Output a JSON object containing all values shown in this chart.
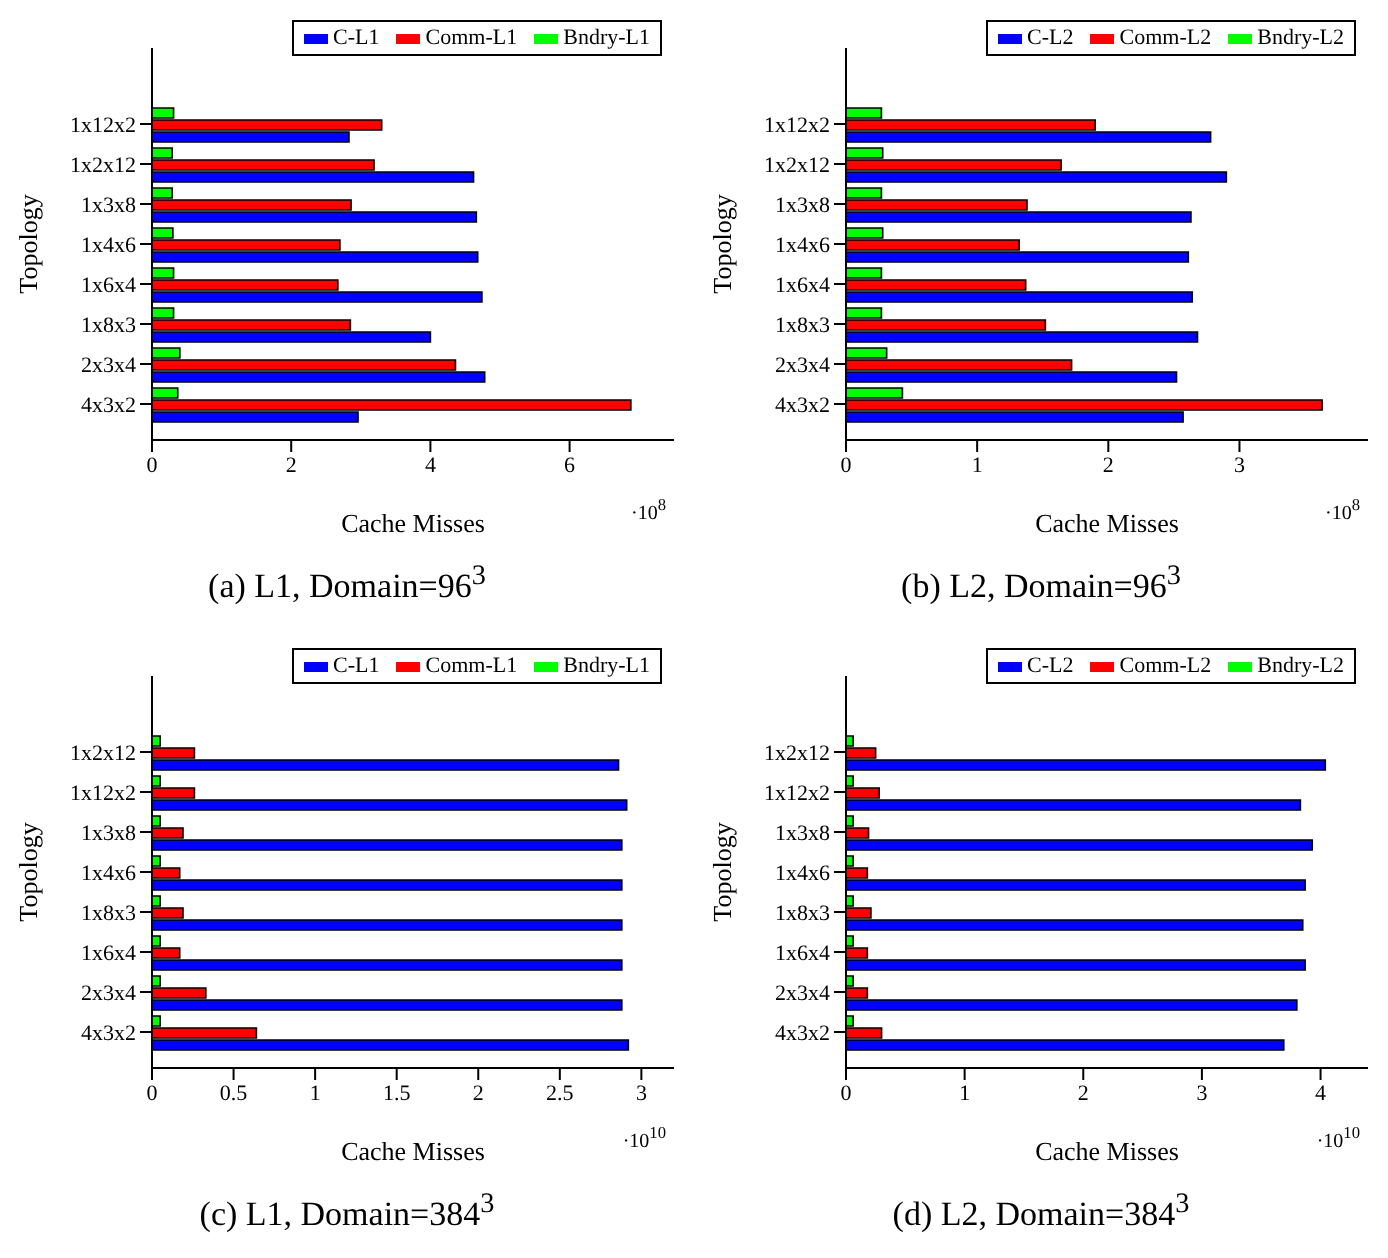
{
  "chart_data": [
    {
      "type": "bar",
      "orientation": "horizontal",
      "title": "(a) L1, Domain=96$^{3}$",
      "xlabel": "Cache Misses",
      "ylabel": "Topology",
      "annotations": [
        "·10$^{8}$"
      ],
      "categories": [
        "1x12x2",
        "1x2x12",
        "1x3x8",
        "1x4x6",
        "1x6x4",
        "1x8x3",
        "2x3x4",
        "4x3x2"
      ],
      "series": [
        {
          "name": "C-L1",
          "color": "#0000ff",
          "values": [
            2.83,
            4.62,
            4.66,
            4.68,
            4.74,
            4.0,
            4.78,
            2.96
          ]
        },
        {
          "name": "Comm-L1",
          "color": "#ff0000",
          "values": [
            3.3,
            3.19,
            2.86,
            2.7,
            2.67,
            2.85,
            4.36,
            6.88
          ]
        },
        {
          "name": "Bndry-L1",
          "color": "#00ff00",
          "values": [
            0.31,
            0.29,
            0.29,
            0.3,
            0.31,
            0.31,
            0.4,
            0.37
          ]
        }
      ],
      "xlim": [
        0,
        7.5
      ],
      "xticks": [
        0,
        2,
        4,
        6
      ],
      "legend": "top right",
      "grid": false
    },
    {
      "type": "bar",
      "orientation": "horizontal",
      "title": "(b) L2, Domain=96$^{3}$",
      "xlabel": "Cache Misses",
      "ylabel": "Topology",
      "annotations": [
        "·10$^{8}$"
      ],
      "categories": [
        "1x12x2",
        "1x2x12",
        "1x3x8",
        "1x4x6",
        "1x6x4",
        "1x8x3",
        "2x3x4",
        "4x3x2"
      ],
      "series": [
        {
          "name": "C-L2",
          "color": "#0000ff",
          "values": [
            2.78,
            2.9,
            2.63,
            2.61,
            2.64,
            2.68,
            2.52,
            2.57
          ]
        },
        {
          "name": "Comm-L2",
          "color": "#ff0000",
          "values": [
            1.9,
            1.64,
            1.38,
            1.32,
            1.37,
            1.52,
            1.72,
            3.63
          ]
        },
        {
          "name": "Bndry-L2",
          "color": "#00ff00",
          "values": [
            0.27,
            0.28,
            0.27,
            0.28,
            0.27,
            0.27,
            0.31,
            0.43
          ]
        }
      ],
      "xlim": [
        0,
        3.98
      ],
      "xticks": [
        0,
        1,
        2,
        3
      ],
      "legend": "top right",
      "grid": false
    },
    {
      "type": "bar",
      "orientation": "horizontal",
      "title": "(c) L1, Domain=384$^{3}$",
      "xlabel": "Cache Misses",
      "ylabel": "Topology",
      "annotations": [
        "·10$^{10}$"
      ],
      "categories": [
        "1x2x12",
        "1x12x2",
        "1x3x8",
        "1x4x6",
        "1x8x3",
        "1x6x4",
        "2x3x4",
        "4x3x2"
      ],
      "series": [
        {
          "name": "C-L1",
          "color": "#0000ff",
          "values": [
            2.86,
            2.91,
            2.88,
            2.88,
            2.88,
            2.88,
            2.88,
            2.92
          ]
        },
        {
          "name": "Comm-L1",
          "color": "#ff0000",
          "values": [
            0.26,
            0.26,
            0.19,
            0.17,
            0.19,
            0.17,
            0.33,
            0.64
          ]
        },
        {
          "name": "Bndry-L1",
          "color": "#00ff00",
          "values": [
            0.05,
            0.05,
            0.05,
            0.05,
            0.05,
            0.05,
            0.05,
            0.05
          ]
        }
      ],
      "xlim": [
        0,
        3.2
      ],
      "xticks": [
        0,
        0.5,
        1,
        1.5,
        2,
        2.5,
        3
      ],
      "legend": "top right",
      "grid": false
    },
    {
      "type": "bar",
      "orientation": "horizontal",
      "title": "(d) L2, Domain=384$^{3}$",
      "xlabel": "Cache Misses",
      "ylabel": "Topology",
      "annotations": [
        "·10$^{10}$"
      ],
      "categories": [
        "1x2x12",
        "1x12x2",
        "1x3x8",
        "1x4x6",
        "1x8x3",
        "1x6x4",
        "2x3x4",
        "4x3x2"
      ],
      "series": [
        {
          "name": "C-L2",
          "color": "#0000ff",
          "values": [
            4.04,
            3.83,
            3.93,
            3.87,
            3.85,
            3.87,
            3.8,
            3.69
          ]
        },
        {
          "name": "Comm-L2",
          "color": "#ff0000",
          "values": [
            0.25,
            0.28,
            0.19,
            0.18,
            0.21,
            0.18,
            0.18,
            0.3
          ]
        },
        {
          "name": "Bndry-L2",
          "color": "#00ff00",
          "values": [
            0.06,
            0.06,
            0.06,
            0.06,
            0.06,
            0.06,
            0.06,
            0.06
          ]
        }
      ],
      "xlim": [
        0,
        4.4
      ],
      "xticks": [
        0,
        1,
        2,
        3,
        4
      ],
      "legend": "top right",
      "grid": false
    }
  ]
}
